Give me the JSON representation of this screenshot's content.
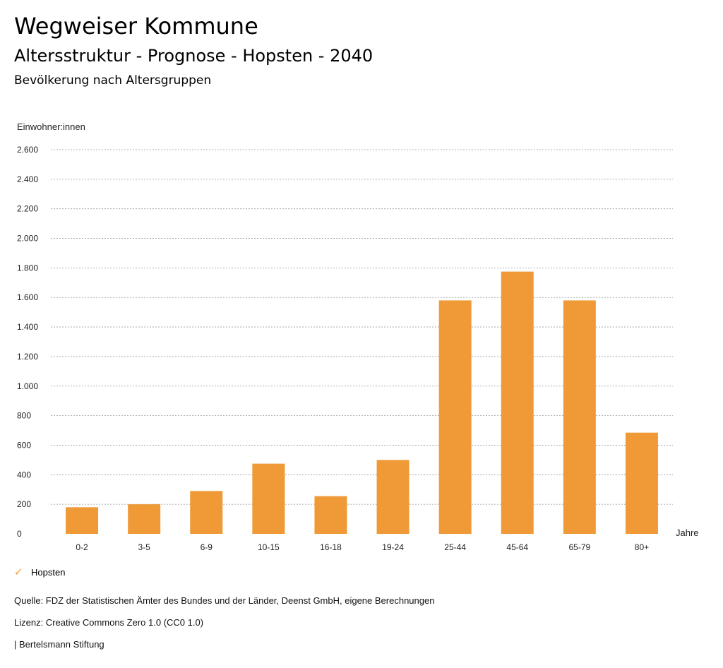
{
  "header": {
    "brand": "Wegweiser Kommune",
    "subtitle": "Altersstruktur - Prognose - Hopsten - 2040"
  },
  "chart_data": {
    "type": "bar",
    "title": "Bevölkerung nach Altersgruppen",
    "ylabel": "Einwohner:innen",
    "xlabel": "Jahre",
    "categories": [
      "0-2",
      "3-5",
      "6-9",
      "10-15",
      "16-18",
      "19-24",
      "25-44",
      "45-64",
      "65-79",
      "80+"
    ],
    "series": [
      {
        "name": "Hopsten",
        "color": "#ef9a37",
        "values": [
          180,
          200,
          290,
          475,
          255,
          500,
          1580,
          1775,
          1580,
          685
        ]
      }
    ],
    "ylim": [
      0,
      2600
    ],
    "yticks": [
      0,
      200,
      400,
      600,
      800,
      1000,
      1200,
      1400,
      1600,
      1800,
      2000,
      2200,
      2400,
      2600
    ],
    "ytick_labels": [
      "0",
      "200",
      "400",
      "600",
      "800",
      "1.000",
      "1.200",
      "1.400",
      "1.600",
      "1.800",
      "2.000",
      "2.200",
      "2.400",
      "2.600"
    ],
    "grid": true,
    "legend": "bottom-left"
  },
  "legend": {
    "check_icon": "checkmark-icon",
    "label": "Hopsten"
  },
  "footer": {
    "source": "Quelle: FDZ der Statistischen Ämter des Bundes und der Länder, Deenst GmbH, eigene Berechnungen",
    "license": "Lizenz: Creative Commons Zero 1.0 (CC0 1.0)",
    "publisher": "| Bertelsmann Stiftung"
  }
}
